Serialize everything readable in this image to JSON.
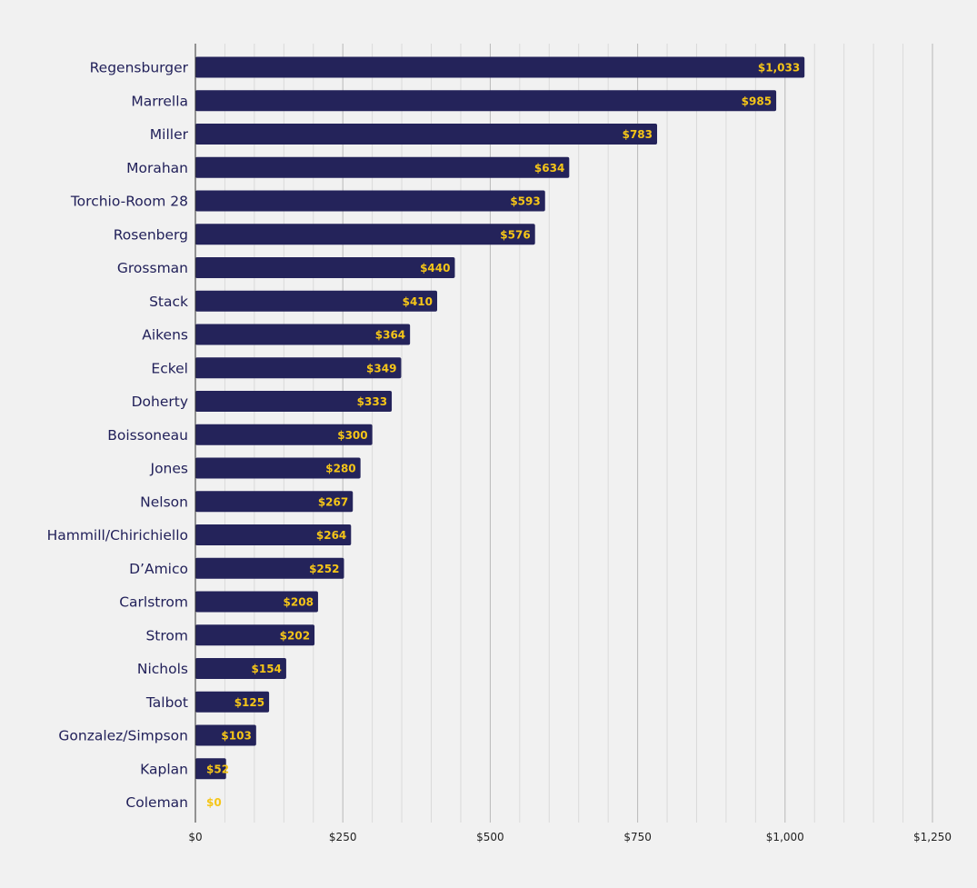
{
  "colors": {
    "background": "#f1f1f1",
    "bar": "#24235a",
    "data_label": "#f5c518",
    "category_label": "#22215a",
    "grid_major": "#b8b8b8",
    "grid_minor": "#dadada",
    "axis": "#333333"
  },
  "chart_data": {
    "type": "bar",
    "orientation": "horizontal",
    "title": "",
    "xlabel": "",
    "ylabel": "",
    "xlim": [
      0,
      1250
    ],
    "grid": true,
    "legend": "none",
    "x_ticks": [
      0,
      250,
      500,
      750,
      1000,
      1250
    ],
    "x_tick_labels": [
      "$0",
      "$250",
      "$500",
      "$750",
      "$1,000",
      "$1,250"
    ],
    "categories": [
      "Regensburger",
      "Marrella",
      "Miller",
      "Morahan",
      "Torchio-Room 28",
      "Rosenberg",
      "Grossman",
      "Stack",
      "Aikens",
      "Eckel",
      "Doherty",
      "Boissoneau",
      "Jones",
      "Nelson",
      "Hammill/Chirichiello",
      "D’Amico",
      "Carlstrom",
      "Strom",
      "Nichols",
      "Talbot",
      "Gonzalez/Simpson",
      "Kaplan",
      "Coleman"
    ],
    "values": [
      1033,
      985,
      783,
      634,
      593,
      576,
      440,
      410,
      364,
      349,
      333,
      300,
      280,
      267,
      264,
      252,
      208,
      202,
      154,
      125,
      103,
      52,
      0
    ],
    "data_labels": [
      "$1,033",
      "$985",
      "$783",
      "$634",
      "$593",
      "$576",
      "$440",
      "$410",
      "$364",
      "$349",
      "$333",
      "$300",
      "$280",
      "$267",
      "$264",
      "$252",
      "$208",
      "$202",
      "$154",
      "$125",
      "$103",
      "$52",
      "$0"
    ]
  }
}
